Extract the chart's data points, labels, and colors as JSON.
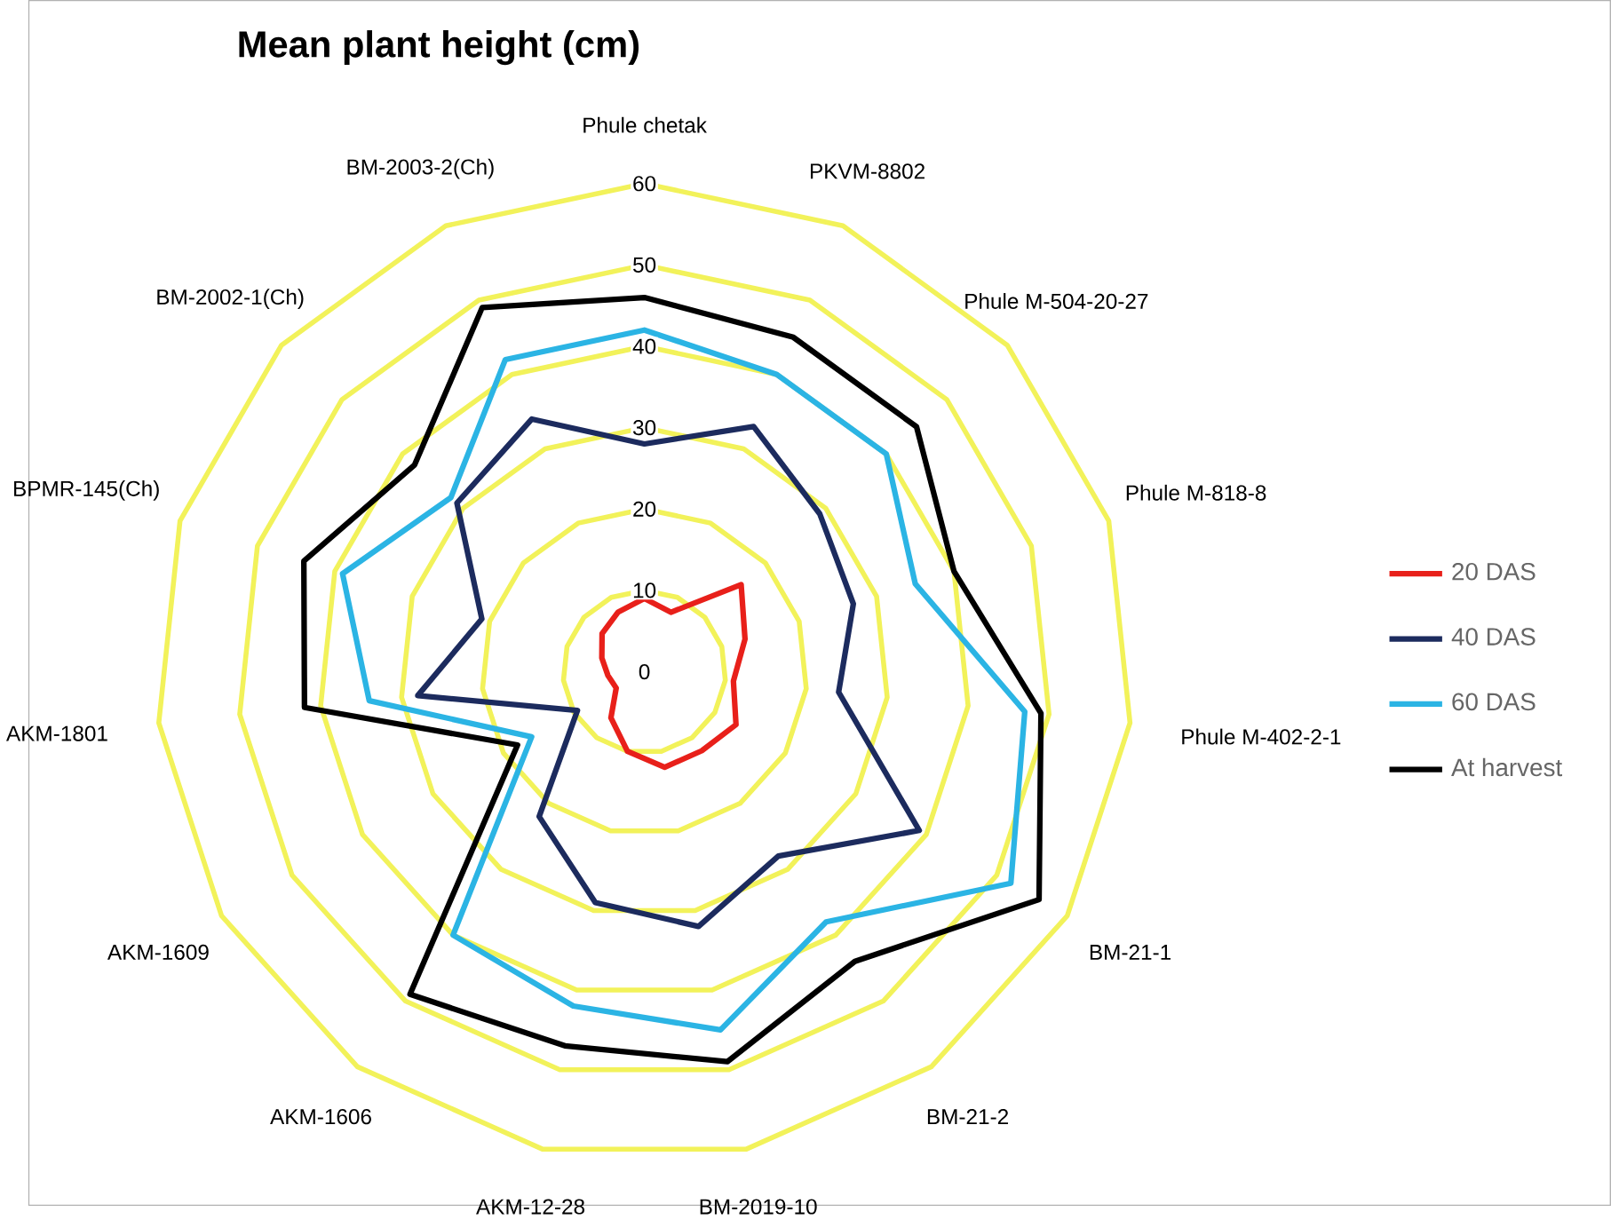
{
  "chart_data": {
    "type": "radar",
    "title": "Mean plant height (cm)",
    "categories": [
      "Phule chetak",
      "PKVM-8802",
      "Phule M-504-20-27",
      "Phule M-818-8",
      "Phule M-402-2-1",
      "BM-21-1",
      "BM-21-2",
      "BM-2019-10",
      "AKM-12-28",
      "AKM-1606",
      "AKM-1609",
      "AKM-1801",
      "BPMR-145(Ch)",
      "BM-2002-1(Ch)",
      "BM-2003-2(Ch)"
    ],
    "ylim": [
      0,
      60
    ],
    "yticks": [
      0,
      10,
      20,
      30,
      40,
      50,
      60
    ],
    "grid": true,
    "legend": "right",
    "series": [
      {
        "name": "20 DAS",
        "color": "#e8201a",
        "values": [
          9,
          8,
          16,
          13,
          11,
          13,
          12,
          12,
          10,
          7,
          4,
          4.5,
          5.5,
          7,
          8
        ]
      },
      {
        "name": "40 DAS",
        "color": "#1c2b5e",
        "values": [
          28,
          33,
          29,
          27,
          24,
          39,
          28,
          32,
          29,
          22,
          9.5,
          28,
          21,
          31,
          34
        ]
      },
      {
        "name": "60 DAS",
        "color": "#2bb4e4",
        "values": [
          42,
          40,
          40,
          35,
          47,
          52,
          38,
          45,
          42,
          40,
          16,
          34,
          39,
          32,
          42
        ]
      },
      {
        "name": "At harvest",
        "color": "#000000",
        "values": [
          46,
          45,
          45,
          40,
          49,
          56,
          44,
          49,
          47,
          49,
          18,
          42,
          44,
          38,
          49
        ]
      }
    ]
  }
}
